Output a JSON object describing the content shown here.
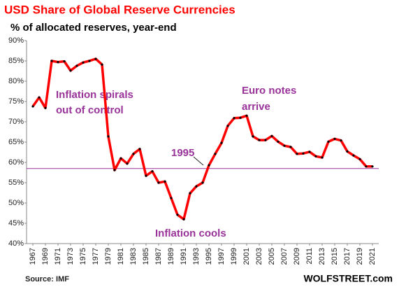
{
  "chart_data": {
    "type": "line",
    "title": "USD Share of Global  Reserve Currencies",
    "subtitle": "% of allocated reserves, year-end",
    "x": [
      1967,
      1968,
      1969,
      1970,
      1971,
      1972,
      1973,
      1974,
      1975,
      1976,
      1977,
      1978,
      1979,
      1980,
      1981,
      1982,
      1983,
      1984,
      1985,
      1986,
      1987,
      1988,
      1989,
      1990,
      1991,
      1992,
      1993,
      1994,
      1995,
      1996,
      1997,
      1998,
      1999,
      2000,
      2001,
      2002,
      2003,
      2004,
      2005,
      2006,
      2007,
      2008,
      2009,
      2010,
      2011,
      2012,
      2013,
      2014,
      2015,
      2016,
      2017,
      2018,
      2019,
      2020,
      2021
    ],
    "series": [
      {
        "name": "USD share",
        "color": "#ff0000",
        "values": [
          73.8,
          76.0,
          73.4,
          85.0,
          84.7,
          84.9,
          82.6,
          83.8,
          84.6,
          85.0,
          85.5,
          84.1,
          66.4,
          58.1,
          61.0,
          59.7,
          62.1,
          63.3,
          56.7,
          57.8,
          55.0,
          55.3,
          51.2,
          47.1,
          46.0,
          52.4,
          54.1,
          55.0,
          59.3,
          62.1,
          64.8,
          69.0,
          70.9,
          71.0,
          71.5,
          66.4,
          65.5,
          65.5,
          66.5,
          65.1,
          64.1,
          63.8,
          62.1,
          62.2,
          62.6,
          61.5,
          61.2,
          65.1,
          65.8,
          65.4,
          62.7,
          61.7,
          60.8,
          59.0,
          59.0
        ]
      }
    ],
    "reference_line": 58.5,
    "reference_color": "#993399",
    "xlim": [
      1966,
      2022
    ],
    "xticks": [
      1967,
      1969,
      1971,
      1973,
      1975,
      1977,
      1979,
      1981,
      1983,
      1985,
      1987,
      1989,
      1991,
      1993,
      1995,
      1997,
      1999,
      2001,
      2003,
      2005,
      2007,
      2009,
      2011,
      2013,
      2015,
      2017,
      2019,
      2021
    ],
    "ylim": [
      40,
      90
    ],
    "yticks": [
      {
        "value": 40,
        "label": "40%"
      },
      {
        "value": 45,
        "label": "45%"
      },
      {
        "value": 50,
        "label": "50%"
      },
      {
        "value": 55,
        "label": "55%"
      },
      {
        "value": 60,
        "label": "60%"
      },
      {
        "value": 65,
        "label": "65%"
      },
      {
        "value": 70,
        "label": "70%"
      },
      {
        "value": 75,
        "label": "75%"
      },
      {
        "value": 80,
        "label": "80%"
      },
      {
        "value": 85,
        "label": "85%"
      },
      {
        "value": 90,
        "label": "90%"
      }
    ],
    "annotations": [
      [
        "Inflation spirals",
        "out of control"
      ],
      [
        "Euro notes",
        "arrive"
      ],
      "1995",
      "Inflation cools"
    ],
    "source": "Source: IMF",
    "brand": "WOLFSTREET.com"
  }
}
